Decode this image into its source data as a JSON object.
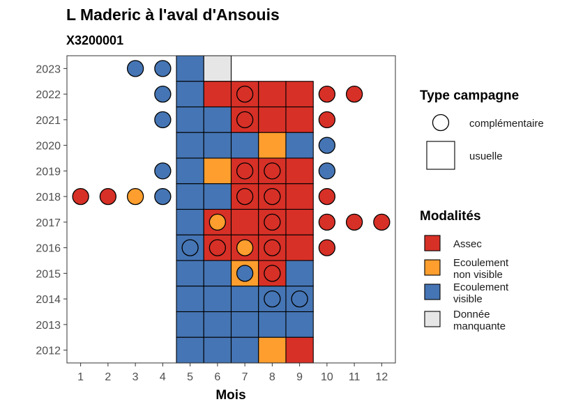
{
  "chart_data": {
    "type": "heatmap",
    "title": "L Maderic à l'aval d'Ansouis",
    "subtitle": "X3200001",
    "xlabel": "Mois",
    "ylabel": "",
    "x_ticks": [
      "1",
      "2",
      "3",
      "4",
      "5",
      "6",
      "7",
      "8",
      "9",
      "10",
      "11",
      "12"
    ],
    "y_ticks": [
      "2012",
      "2013",
      "2014",
      "2015",
      "2016",
      "2017",
      "2018",
      "2019",
      "2020",
      "2021",
      "2022",
      "2023"
    ],
    "xlim": [
      0.5,
      12.5
    ],
    "ylim": [
      2011.5,
      2023.5
    ],
    "colors": {
      "Assec": "#d73027",
      "Ecoulement non visible": "#fd9e2e",
      "Ecoulement visible": "#4575b4",
      "Donnée manquante": "#e6e6e6"
    },
    "legend_type": {
      "title": "Type campagne",
      "items": [
        {
          "label": "complémentaire",
          "shape": "circle"
        },
        {
          "label": "usuelle",
          "shape": "square"
        }
      ]
    },
    "legend_modalites": {
      "title": "Modalités",
      "items": [
        {
          "key": "Assec",
          "lines": [
            "Assec"
          ]
        },
        {
          "key": "Ecoulement non visible",
          "lines": [
            "Ecoulement",
            "non visible"
          ]
        },
        {
          "key": "Ecoulement visible",
          "lines": [
            "Ecoulement",
            "visible"
          ]
        },
        {
          "key": "Donnée manquante",
          "lines": [
            "Donnée",
            "manquante"
          ]
        }
      ]
    },
    "usuelle": [
      {
        "year": 2023,
        "values": {
          "5": "Ecoulement visible",
          "6": "Donnée manquante"
        }
      },
      {
        "year": 2022,
        "values": {
          "5": "Ecoulement visible",
          "6": "Assec",
          "7": "Assec",
          "8": "Assec",
          "9": "Assec"
        }
      },
      {
        "year": 2021,
        "values": {
          "5": "Ecoulement visible",
          "6": "Ecoulement visible",
          "7": "Assec",
          "8": "Assec",
          "9": "Assec"
        }
      },
      {
        "year": 2020,
        "values": {
          "5": "Ecoulement visible",
          "6": "Ecoulement visible",
          "7": "Ecoulement visible",
          "8": "Ecoulement non visible",
          "9": "Ecoulement visible"
        }
      },
      {
        "year": 2019,
        "values": {
          "5": "Ecoulement visible",
          "6": "Ecoulement non visible",
          "7": "Assec",
          "8": "Assec",
          "9": "Assec"
        }
      },
      {
        "year": 2018,
        "values": {
          "5": "Ecoulement visible",
          "6": "Ecoulement visible",
          "7": "Assec",
          "8": "Assec",
          "9": "Assec"
        }
      },
      {
        "year": 2017,
        "values": {
          "5": "Ecoulement visible",
          "6": "Assec",
          "7": "Assec",
          "8": "Assec",
          "9": "Assec"
        }
      },
      {
        "year": 2016,
        "values": {
          "5": "Ecoulement visible",
          "6": "Assec",
          "7": "Assec",
          "8": "Assec",
          "9": "Assec"
        }
      },
      {
        "year": 2015,
        "values": {
          "5": "Ecoulement visible",
          "6": "Ecoulement visible",
          "7": "Ecoulement non visible",
          "8": "Assec",
          "9": "Ecoulement visible"
        }
      },
      {
        "year": 2014,
        "values": {
          "5": "Ecoulement visible",
          "6": "Ecoulement visible",
          "7": "Ecoulement visible",
          "8": "Ecoulement visible",
          "9": "Ecoulement visible"
        }
      },
      {
        "year": 2013,
        "values": {
          "5": "Ecoulement visible",
          "6": "Ecoulement visible",
          "7": "Ecoulement visible",
          "8": "Ecoulement visible",
          "9": "Ecoulement visible"
        }
      },
      {
        "year": 2012,
        "values": {
          "5": "Ecoulement visible",
          "6": "Ecoulement visible",
          "7": "Ecoulement visible",
          "8": "Ecoulement non visible",
          "9": "Assec"
        }
      }
    ],
    "complementaire": [
      {
        "year": 2023,
        "month": 3,
        "value": "Ecoulement visible"
      },
      {
        "year": 2023,
        "month": 4,
        "value": "Ecoulement visible"
      },
      {
        "year": 2022,
        "month": 4,
        "value": "Ecoulement visible"
      },
      {
        "year": 2022,
        "month": 7,
        "value": "Assec"
      },
      {
        "year": 2022,
        "month": 10,
        "value": "Assec"
      },
      {
        "year": 2022,
        "month": 11,
        "value": "Assec"
      },
      {
        "year": 2021,
        "month": 4,
        "value": "Ecoulement visible"
      },
      {
        "year": 2021,
        "month": 7,
        "value": "Assec"
      },
      {
        "year": 2021,
        "month": 10,
        "value": "Assec"
      },
      {
        "year": 2020,
        "month": 10,
        "value": "Ecoulement visible"
      },
      {
        "year": 2019,
        "month": 4,
        "value": "Ecoulement visible"
      },
      {
        "year": 2019,
        "month": 7,
        "value": "Assec"
      },
      {
        "year": 2019,
        "month": 8,
        "value": "Assec"
      },
      {
        "year": 2019,
        "month": 10,
        "value": "Ecoulement visible"
      },
      {
        "year": 2018,
        "month": 1,
        "value": "Assec"
      },
      {
        "year": 2018,
        "month": 2,
        "value": "Assec"
      },
      {
        "year": 2018,
        "month": 3,
        "value": "Ecoulement non visible"
      },
      {
        "year": 2018,
        "month": 4,
        "value": "Ecoulement visible"
      },
      {
        "year": 2018,
        "month": 7,
        "value": "Assec"
      },
      {
        "year": 2018,
        "month": 8,
        "value": "Assec"
      },
      {
        "year": 2018,
        "month": 10,
        "value": "Assec"
      },
      {
        "year": 2017,
        "month": 6,
        "value": "Ecoulement non visible"
      },
      {
        "year": 2017,
        "month": 8,
        "value": "Assec"
      },
      {
        "year": 2017,
        "month": 10,
        "value": "Assec"
      },
      {
        "year": 2017,
        "month": 11,
        "value": "Assec"
      },
      {
        "year": 2017,
        "month": 12,
        "value": "Assec"
      },
      {
        "year": 2016,
        "month": 5,
        "value": "Ecoulement visible"
      },
      {
        "year": 2016,
        "month": 6,
        "value": "Assec"
      },
      {
        "year": 2016,
        "month": 7,
        "value": "Ecoulement non visible"
      },
      {
        "year": 2016,
        "month": 8,
        "value": "Assec"
      },
      {
        "year": 2016,
        "month": 10,
        "value": "Assec"
      },
      {
        "year": 2015,
        "month": 7,
        "value": "Ecoulement visible"
      },
      {
        "year": 2015,
        "month": 8,
        "value": "Assec"
      },
      {
        "year": 2014,
        "month": 8,
        "value": "Ecoulement visible"
      },
      {
        "year": 2014,
        "month": 9,
        "value": "Ecoulement visible"
      }
    ]
  }
}
